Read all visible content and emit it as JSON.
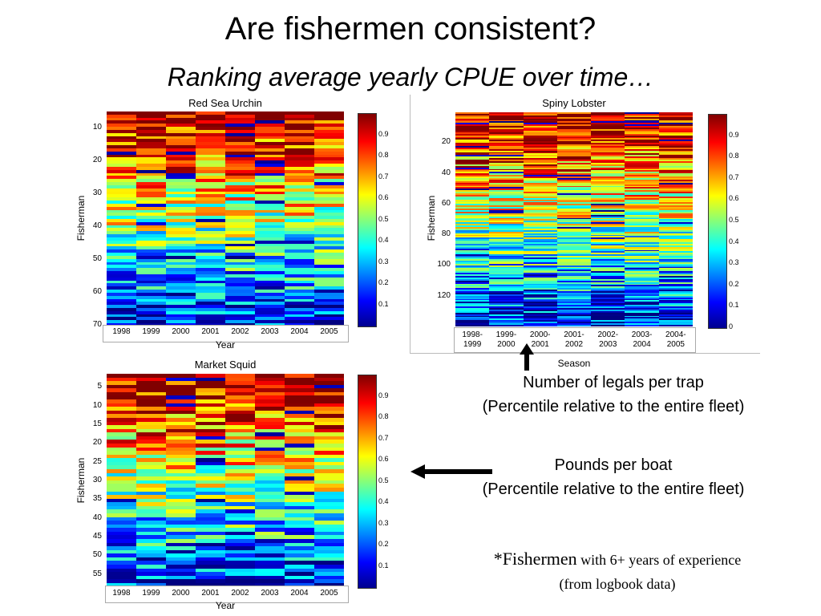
{
  "title": "Are fishermen consistent?",
  "subtitle": "Ranking average yearly CPUE over time…",
  "colorbar_ticks": [
    "0.9",
    "0.8",
    "0.7",
    "0.6",
    "0.5",
    "0.4",
    "0.3",
    "0.2",
    "0.1"
  ],
  "colorbar_ticks_lobster": [
    "0.9",
    "0.8",
    "0.7",
    "0.6",
    "0.5",
    "0.4",
    "0.3",
    "0.2",
    "0.1",
    "0"
  ],
  "chart_data": [
    {
      "type": "heatmap",
      "title": "Red Sea Urchin",
      "xlabel": "Year",
      "ylabel": "Fisherman",
      "x_ticks": [
        "1998",
        "1999",
        "2000",
        "2001",
        "2002",
        "2003",
        "2004",
        "2005"
      ],
      "y_ticks": [
        "10",
        "20",
        "30",
        "40",
        "50",
        "60",
        "70"
      ],
      "rows": 70
    },
    {
      "type": "heatmap",
      "title": "Spiny Lobster",
      "xlabel": "Season",
      "ylabel": "Fisherman",
      "x_ticks": [
        "1998-\n1999",
        "1999-\n2000",
        "2000-\n2001",
        "2001-\n2002",
        "2002-\n2003",
        "2003-\n2004",
        "2004-\n2005"
      ],
      "y_ticks": [
        "20",
        "40",
        "60",
        "80",
        "100",
        "120"
      ],
      "rows": 140
    },
    {
      "type": "heatmap",
      "title": "Market Squid",
      "xlabel": "Year",
      "ylabel": "Fisherman",
      "x_ticks": [
        "1998",
        "1999",
        "2000",
        "2001",
        "2002",
        "2003",
        "2004",
        "2005"
      ],
      "y_ticks": [
        "5",
        "10",
        "15",
        "20",
        "25",
        "30",
        "35",
        "40",
        "45",
        "50",
        "55"
      ],
      "rows": 58
    }
  ],
  "captions": {
    "lobster_line1": "Number of legals per trap",
    "lobster_line2": "(Percentile relative to the entire fleet)",
    "squid_line1": "Pounds per boat",
    "squid_line2": "(Percentile relative to the entire fleet)",
    "note_star": "*",
    "note_word": "Fishermen",
    "note_rest": " with 6+ years of experience",
    "note_line2": "(from logbook data)"
  }
}
